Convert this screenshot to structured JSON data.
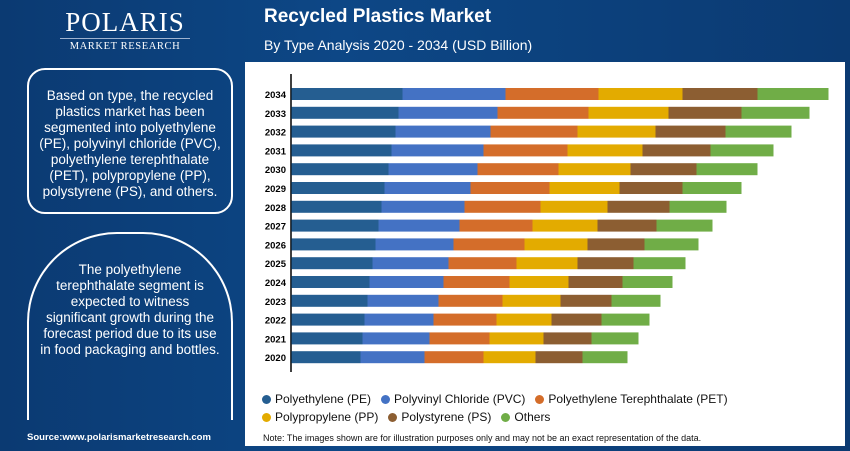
{
  "logo": {
    "name": "POLARIS",
    "sub": "MARKET RESEARCH"
  },
  "header": {
    "title": "Recycled Plastics Market",
    "subtitle": "By Type Analysis 2020 - 2034 (USD Billion)"
  },
  "sidebar": {
    "box1": "Based on type, the recycled plastics market has been segmented into polyethylene (PE), polyvinyl chloride (PVC), polyethylene terephthalate (PET), polypropylene (PP), polystyrene (PS), and others.",
    "box2": "The polyethylene terephthalate segment is expected to witness significant growth during the forecast period due to its use in food packaging and bottles.",
    "source": "Source:www.polarismarketresearch.com"
  },
  "note": "Note: The images shown are for illustration purposes only and may not be an exact representation of the data.",
  "chart_data": {
    "type": "bar",
    "orientation": "horizontal",
    "stacked": true,
    "grid": false,
    "title": "Recycled Plastics Market",
    "subtitle": "By Type Analysis 2020 - 2034 (USD Billion)",
    "categories": [
      "2034",
      "2033",
      "2032",
      "2031",
      "2030",
      "2029",
      "2028",
      "2027",
      "2026",
      "2025",
      "2024",
      "2023",
      "2022",
      "2021",
      "2020"
    ],
    "legend_position": "bottom",
    "series": [
      {
        "name": "Polyethylene (PE)",
        "color": "#255e91",
        "values": [
          11.1,
          10.7,
          10.4,
          10.0,
          9.7,
          9.3,
          9.0,
          8.7,
          8.4,
          8.1,
          7.8,
          7.6,
          7.3,
          7.1,
          6.9
        ]
      },
      {
        "name": "Polyvinyl Chloride (PVC)",
        "color": "#4472c4",
        "values": [
          10.3,
          9.9,
          9.5,
          9.2,
          8.9,
          8.6,
          8.3,
          8.1,
          7.8,
          7.6,
          7.4,
          7.1,
          6.9,
          6.7,
          6.4
        ]
      },
      {
        "name": "Polyethylene Terephthalate (PET)",
        "color": "#d46d2a",
        "values": [
          9.3,
          9.1,
          8.7,
          8.4,
          8.1,
          7.9,
          7.6,
          7.3,
          7.1,
          6.8,
          6.6,
          6.4,
          6.3,
          6.0,
          5.9
        ]
      },
      {
        "name": "Polypropylene (PP)",
        "color": "#e3ab00",
        "values": [
          8.4,
          8.0,
          7.8,
          7.5,
          7.2,
          7.0,
          6.7,
          6.5,
          6.3,
          6.1,
          5.9,
          5.8,
          5.5,
          5.4,
          5.2
        ]
      },
      {
        "name": "Polystyrene (PS)",
        "color": "#8c5e32",
        "values": [
          7.5,
          7.3,
          7.0,
          6.8,
          6.6,
          6.3,
          6.2,
          5.9,
          5.7,
          5.6,
          5.4,
          5.1,
          5.0,
          4.8,
          4.7
        ]
      },
      {
        "name": "Others",
        "color": "#70ad47",
        "values": [
          7.1,
          6.8,
          6.6,
          6.3,
          6.1,
          5.9,
          5.7,
          5.6,
          5.4,
          5.2,
          5.0,
          4.9,
          4.8,
          4.7,
          4.5
        ]
      }
    ]
  }
}
